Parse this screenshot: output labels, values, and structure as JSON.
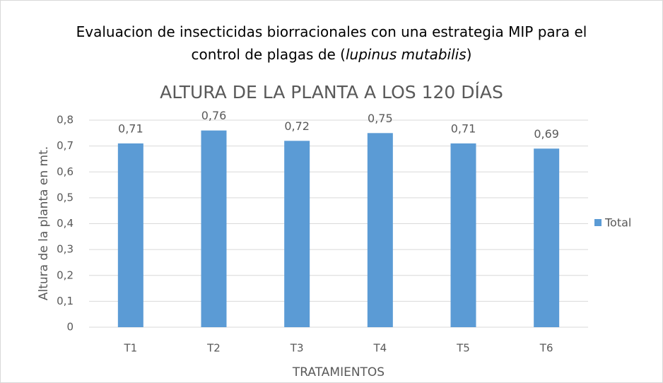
{
  "chart_data": {
    "type": "bar",
    "title": {
      "line1": "Evaluacion de insecticidas biorracionales con una estrategia MIP para el",
      "line2_start": "control de plagas de (",
      "line2_italic": "lupinus mutabilis",
      "line2_end": ")"
    },
    "subtitle": "ALTURA DE LA PLANTA A LOS 120 DÍAS",
    "y_label": "Altura de la planta en mt.",
    "x_label": "TRATAMIENTOS",
    "categories": [
      "T1",
      "T2",
      "T3",
      "T4",
      "T5",
      "T6"
    ],
    "series": [
      {
        "name": "Total",
        "color": "#5b9bd5",
        "values": [
          0.71,
          0.76,
          0.72,
          0.75,
          0.71,
          0.69
        ],
        "value_labels": [
          "0,71",
          "0,76",
          "0,72",
          "0,75",
          "0,71",
          "0,69"
        ]
      }
    ],
    "ylim": [
      0,
      0.8
    ],
    "yticks": [
      0,
      {
        "value": 0.1,
        "label": "0,1"
      },
      {
        "value": 0.2,
        "label": "0,2"
      },
      {
        "value": 0.3,
        "label": "0,3"
      },
      {
        "value": 0.4,
        "label": "0,4"
      },
      {
        "value": 0.5,
        "label": "0,5"
      },
      {
        "value": 0.6,
        "label": "0,6"
      },
      {
        "value": 0.7,
        "label": "0,7"
      },
      {
        "value": 0.8,
        "label": "0,8"
      }
    ],
    "grid": true,
    "legend": "right"
  }
}
